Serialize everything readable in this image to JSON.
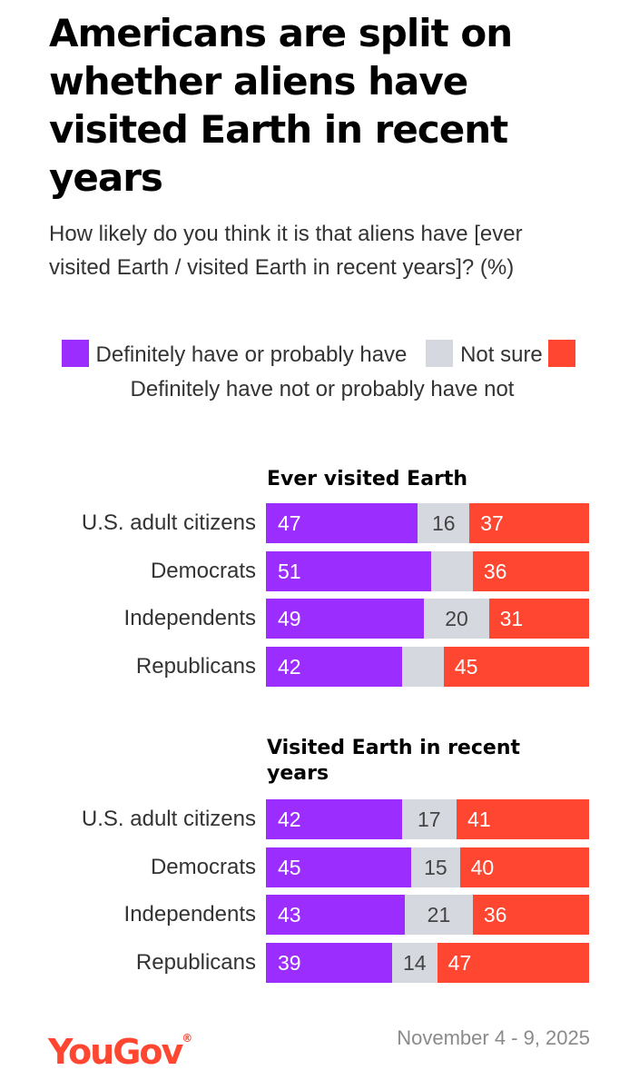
{
  "title": "Americans are split on whether aliens have visited Earth in recent years",
  "subtitle": "How likely do you think it is that aliens have [ever visited Earth / visited Earth in recent years]? (%)",
  "legend": [
    {
      "label": "Definitely have or probably have",
      "color": "#9b2eff"
    },
    {
      "label": "Not sure",
      "color": "#d5d8de"
    },
    {
      "label": "Definitely have not or probably have not",
      "color": "#ff4630"
    }
  ],
  "chart_data": [
    {
      "type": "bar",
      "stacked": true,
      "orientation": "horizontal",
      "title": "Ever visited Earth",
      "categories": [
        "U.S. adult citizens",
        "Democrats",
        "Independents",
        "Republicans"
      ],
      "series": [
        {
          "name": "Definitely have or probably have",
          "values": [
            47,
            51,
            49,
            42
          ]
        },
        {
          "name": "Not sure",
          "values": [
            16,
            13,
            20,
            13
          ]
        },
        {
          "name": "Definitely have not or probably have not",
          "values": [
            37,
            36,
            31,
            45
          ]
        }
      ],
      "labels_shown": [
        [
          "47",
          "16",
          "37"
        ],
        [
          "51",
          "",
          "36"
        ],
        [
          "49",
          "20",
          "31"
        ],
        [
          "42",
          "",
          "45"
        ]
      ]
    },
    {
      "type": "bar",
      "stacked": true,
      "orientation": "horizontal",
      "title": "Visited Earth in recent years",
      "categories": [
        "U.S. adult citizens",
        "Democrats",
        "Independents",
        "Republicans"
      ],
      "series": [
        {
          "name": "Definitely have or probably have",
          "values": [
            42,
            45,
            43,
            39
          ]
        },
        {
          "name": "Not sure",
          "values": [
            17,
            15,
            21,
            14
          ]
        },
        {
          "name": "Definitely have not or probably have not",
          "values": [
            41,
            40,
            36,
            47
          ]
        }
      ],
      "labels_shown": [
        [
          "42",
          "17",
          "41"
        ],
        [
          "45",
          "15",
          "40"
        ],
        [
          "43",
          "21",
          "36"
        ],
        [
          "39",
          "14",
          "47"
        ]
      ]
    }
  ],
  "footer": {
    "logo": "YouGov",
    "date": "November 4 - 9, 2025"
  }
}
